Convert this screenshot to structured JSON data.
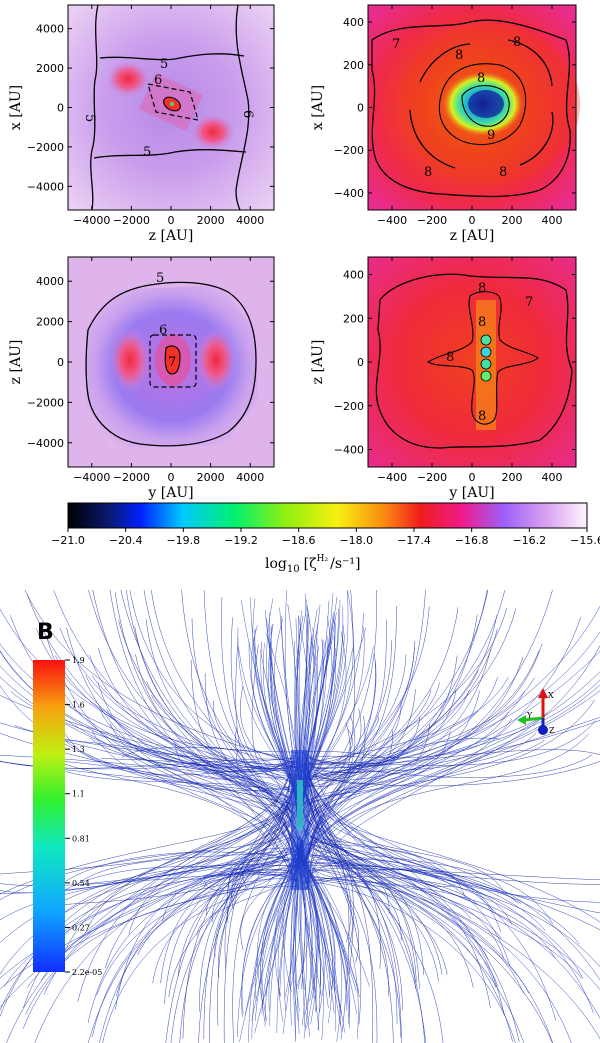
{
  "figure": "Cosmic-ray ionisation rate maps and magnetic field lines",
  "panels": [
    {
      "id": "tl",
      "xlabel": "z [AU]",
      "ylabel": "x [AU]",
      "xticks": [
        "−4000",
        "−2000",
        "0",
        "2000",
        "4000"
      ],
      "yticks": [
        "4000",
        "2000",
        "0",
        "−2000",
        "−4000"
      ],
      "contours": [
        "6",
        "5",
        "5",
        "5",
        "6"
      ]
    },
    {
      "id": "tr",
      "xlabel": "z [AU]",
      "ylabel": "x [AU]",
      "xticks": [
        "−400",
        "−200",
        "0",
        "200",
        "400"
      ],
      "yticks": [
        "400",
        "200",
        "0",
        "−200",
        "−400"
      ],
      "contours": [
        "7",
        "8",
        "8",
        "8",
        "9",
        "8",
        "8"
      ]
    },
    {
      "id": "bl",
      "xlabel": "y [AU]",
      "ylabel": "z [AU]",
      "xticks": [
        "−4000",
        "−2000",
        "0",
        "2000",
        "4000"
      ],
      "yticks": [
        "4000",
        "2000",
        "0",
        "−2000",
        "−4000"
      ],
      "contours": [
        "5",
        "6",
        "7"
      ]
    },
    {
      "id": "br",
      "xlabel": "y [AU]",
      "ylabel": "z [AU]",
      "xticks": [
        "−400",
        "−200",
        "0",
        "200",
        "400"
      ],
      "yticks": [
        "400",
        "200",
        "0",
        "−200",
        "−400"
      ],
      "contours": [
        "7",
        "8",
        "8",
        "8",
        "8"
      ]
    }
  ],
  "colorbar": {
    "ticks": [
      "−21.0",
      "−20.4",
      "−19.8",
      "−19.2",
      "−18.6",
      "−18.0",
      "−17.4",
      "−16.8",
      "−16.2",
      "−15.6"
    ],
    "label_main": "log",
    "label_sub": "10",
    "label_rest": "[ζ",
    "label_sup": "H₂",
    "label_end": "/s⁻¹]"
  },
  "field_panel": {
    "title": "B",
    "ticks": [
      "1.9",
      "1.6",
      "1.3",
      "1.1",
      "0.81",
      "0.54",
      "0.27",
      "2.2e-05"
    ],
    "axes": {
      "x": "X",
      "y": "Y",
      "z": "Z"
    }
  },
  "chart_data": [
    {
      "type": "heatmap",
      "title": "",
      "xlabel": "z [AU]",
      "ylabel": "x [AU]",
      "xlim": [
        -5200,
        5200
      ],
      "ylim": [
        -5200,
        5200
      ],
      "colorbar_range": [
        -21.0,
        -15.6
      ],
      "contour_levels": [
        5,
        6
      ]
    },
    {
      "type": "heatmap",
      "title": "",
      "xlabel": "z [AU]",
      "ylabel": "x [AU]",
      "xlim": [
        -520,
        520
      ],
      "ylim": [
        -480,
        480
      ],
      "colorbar_range": [
        -21.0,
        -15.6
      ],
      "contour_levels": [
        7,
        8,
        9
      ]
    },
    {
      "type": "heatmap",
      "title": "",
      "xlabel": "y [AU]",
      "ylabel": "z [AU]",
      "xlim": [
        -5200,
        5200
      ],
      "ylim": [
        -5200,
        5200
      ],
      "colorbar_range": [
        -21.0,
        -15.6
      ],
      "contour_levels": [
        5,
        6,
        7
      ]
    },
    {
      "type": "heatmap",
      "title": "",
      "xlabel": "y [AU]",
      "ylabel": "z [AU]",
      "xlim": [
        -520,
        520
      ],
      "ylim": [
        -480,
        480
      ],
      "colorbar_range": [
        -21.0,
        -15.6
      ],
      "contour_levels": [
        7,
        8
      ]
    }
  ]
}
